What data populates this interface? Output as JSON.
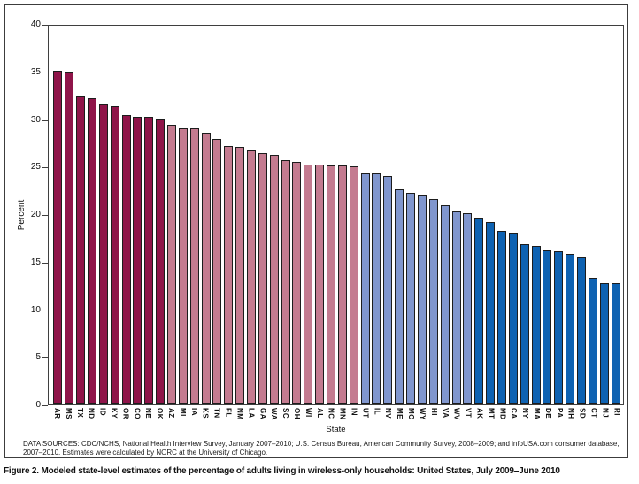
{
  "figure": {
    "caption": "Figure 2. Modeled state-level estimates of the percentage of adults living in wireless-only households: United States, July 2009–June 2010",
    "data_sources_line1": "DATA SOURCES: CDC/NCHS, National Health Interview Survey, January 2007–2010; U.S. Census Bureau, American Community Survey, 2008–2009; and infoUSA.com consumer database,",
    "data_sources_line2": "2007–2010. Estimates were calculated by NORC at the University of Chicago."
  },
  "chart_data": {
    "type": "bar",
    "title": "",
    "xlabel": "State",
    "ylabel": "Percent",
    "ylim": [
      0,
      40
    ],
    "yticks": [
      0,
      5,
      10,
      15,
      20,
      25,
      30,
      35,
      40
    ],
    "grid": false,
    "legend": "none",
    "categories": [
      "AR",
      "MS",
      "TX",
      "ND",
      "ID",
      "KY",
      "OR",
      "CO",
      "NE",
      "OK",
      "AZ",
      "MI",
      "IA",
      "KS",
      "TN",
      "FL",
      "NM",
      "LA",
      "GA",
      "WA",
      "SC",
      "OH",
      "WI",
      "AL",
      "NC",
      "MN",
      "IN",
      "UT",
      "IL",
      "NV",
      "ME",
      "MO",
      "WY",
      "HI",
      "VA",
      "WV",
      "VT",
      "AK",
      "MT",
      "MD",
      "CA",
      "NY",
      "MA",
      "DE",
      "PA",
      "NH",
      "SD",
      "CT",
      "NJ",
      "RI"
    ],
    "values": [
      35.2,
      35.1,
      32.5,
      32.3,
      31.7,
      31.5,
      30.6,
      30.4,
      30.4,
      30.1,
      29.5,
      29.2,
      29.2,
      28.7,
      28.0,
      27.3,
      27.2,
      26.8,
      26.5,
      26.4,
      25.8,
      25.6,
      25.3,
      25.3,
      25.2,
      25.2,
      25.1,
      24.4,
      24.4,
      24.1,
      22.7,
      22.3,
      22.2,
      21.7,
      21.0,
      20.4,
      20.2,
      19.7,
      19.3,
      18.3,
      18.1,
      16.9,
      16.7,
      16.3,
      16.2,
      15.9,
      15.5,
      13.4,
      12.8,
      12.8
    ],
    "bar_group": [
      0,
      0,
      0,
      0,
      0,
      0,
      0,
      0,
      0,
      0,
      1,
      1,
      1,
      1,
      1,
      1,
      1,
      1,
      1,
      1,
      1,
      1,
      1,
      1,
      1,
      1,
      1,
      2,
      2,
      2,
      2,
      2,
      2,
      2,
      2,
      2,
      2,
      3,
      3,
      3,
      3,
      3,
      3,
      3,
      3,
      3,
      3,
      3,
      3,
      3
    ]
  },
  "colors": {
    "group_fills": [
      "#8F1449",
      "#C47B90",
      "#8096CE",
      "#0E62B2"
    ],
    "bar_outline": "#1c1c1c",
    "frame": "#3f3f3f",
    "text": "#111111"
  }
}
